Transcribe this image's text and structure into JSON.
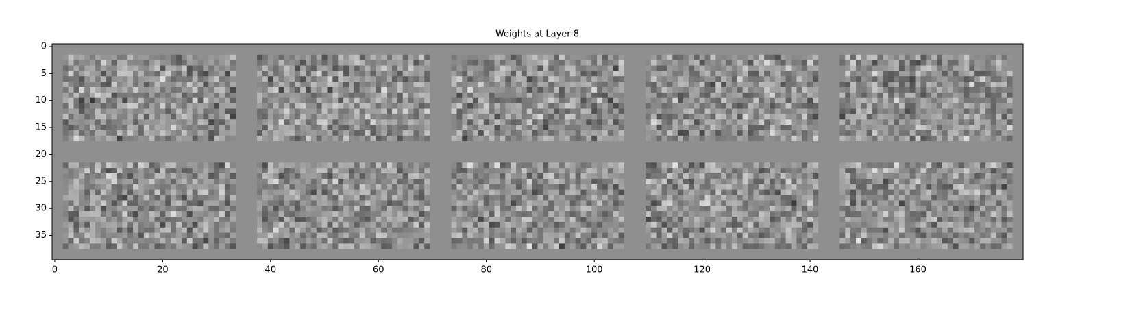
{
  "chart_data": {
    "type": "image",
    "title": "Weights at Layer:8",
    "xlim": [
      -0.5,
      179.5
    ],
    "ylim": [
      39.5,
      -0.5
    ],
    "xticks": [
      0,
      20,
      40,
      60,
      80,
      100,
      120,
      140,
      160
    ],
    "yticks": [
      0,
      5,
      10,
      15,
      20,
      25,
      30,
      35
    ],
    "background": "#8f8f8f",
    "tiles": [
      {
        "x": [
          1.5,
          33.5
        ],
        "y": [
          1.5,
          17.5
        ]
      },
      {
        "x": [
          37.5,
          69.5
        ],
        "y": [
          1.5,
          17.5
        ]
      },
      {
        "x": [
          73.5,
          105.5
        ],
        "y": [
          1.5,
          17.5
        ]
      },
      {
        "x": [
          109.5,
          141.5
        ],
        "y": [
          1.5,
          17.5
        ]
      },
      {
        "x": [
          145.5,
          177.5
        ],
        "y": [
          1.5,
          17.5
        ]
      },
      {
        "x": [
          1.5,
          33.5
        ],
        "y": [
          21.5,
          37.5
        ]
      },
      {
        "x": [
          37.5,
          69.5
        ],
        "y": [
          21.5,
          37.5
        ]
      },
      {
        "x": [
          73.5,
          105.5
        ],
        "y": [
          21.5,
          37.5
        ]
      },
      {
        "x": [
          109.5,
          141.5
        ],
        "y": [
          21.5,
          37.5
        ]
      },
      {
        "x": [
          145.5,
          177.5
        ],
        "y": [
          21.5,
          37.5
        ]
      }
    ]
  }
}
